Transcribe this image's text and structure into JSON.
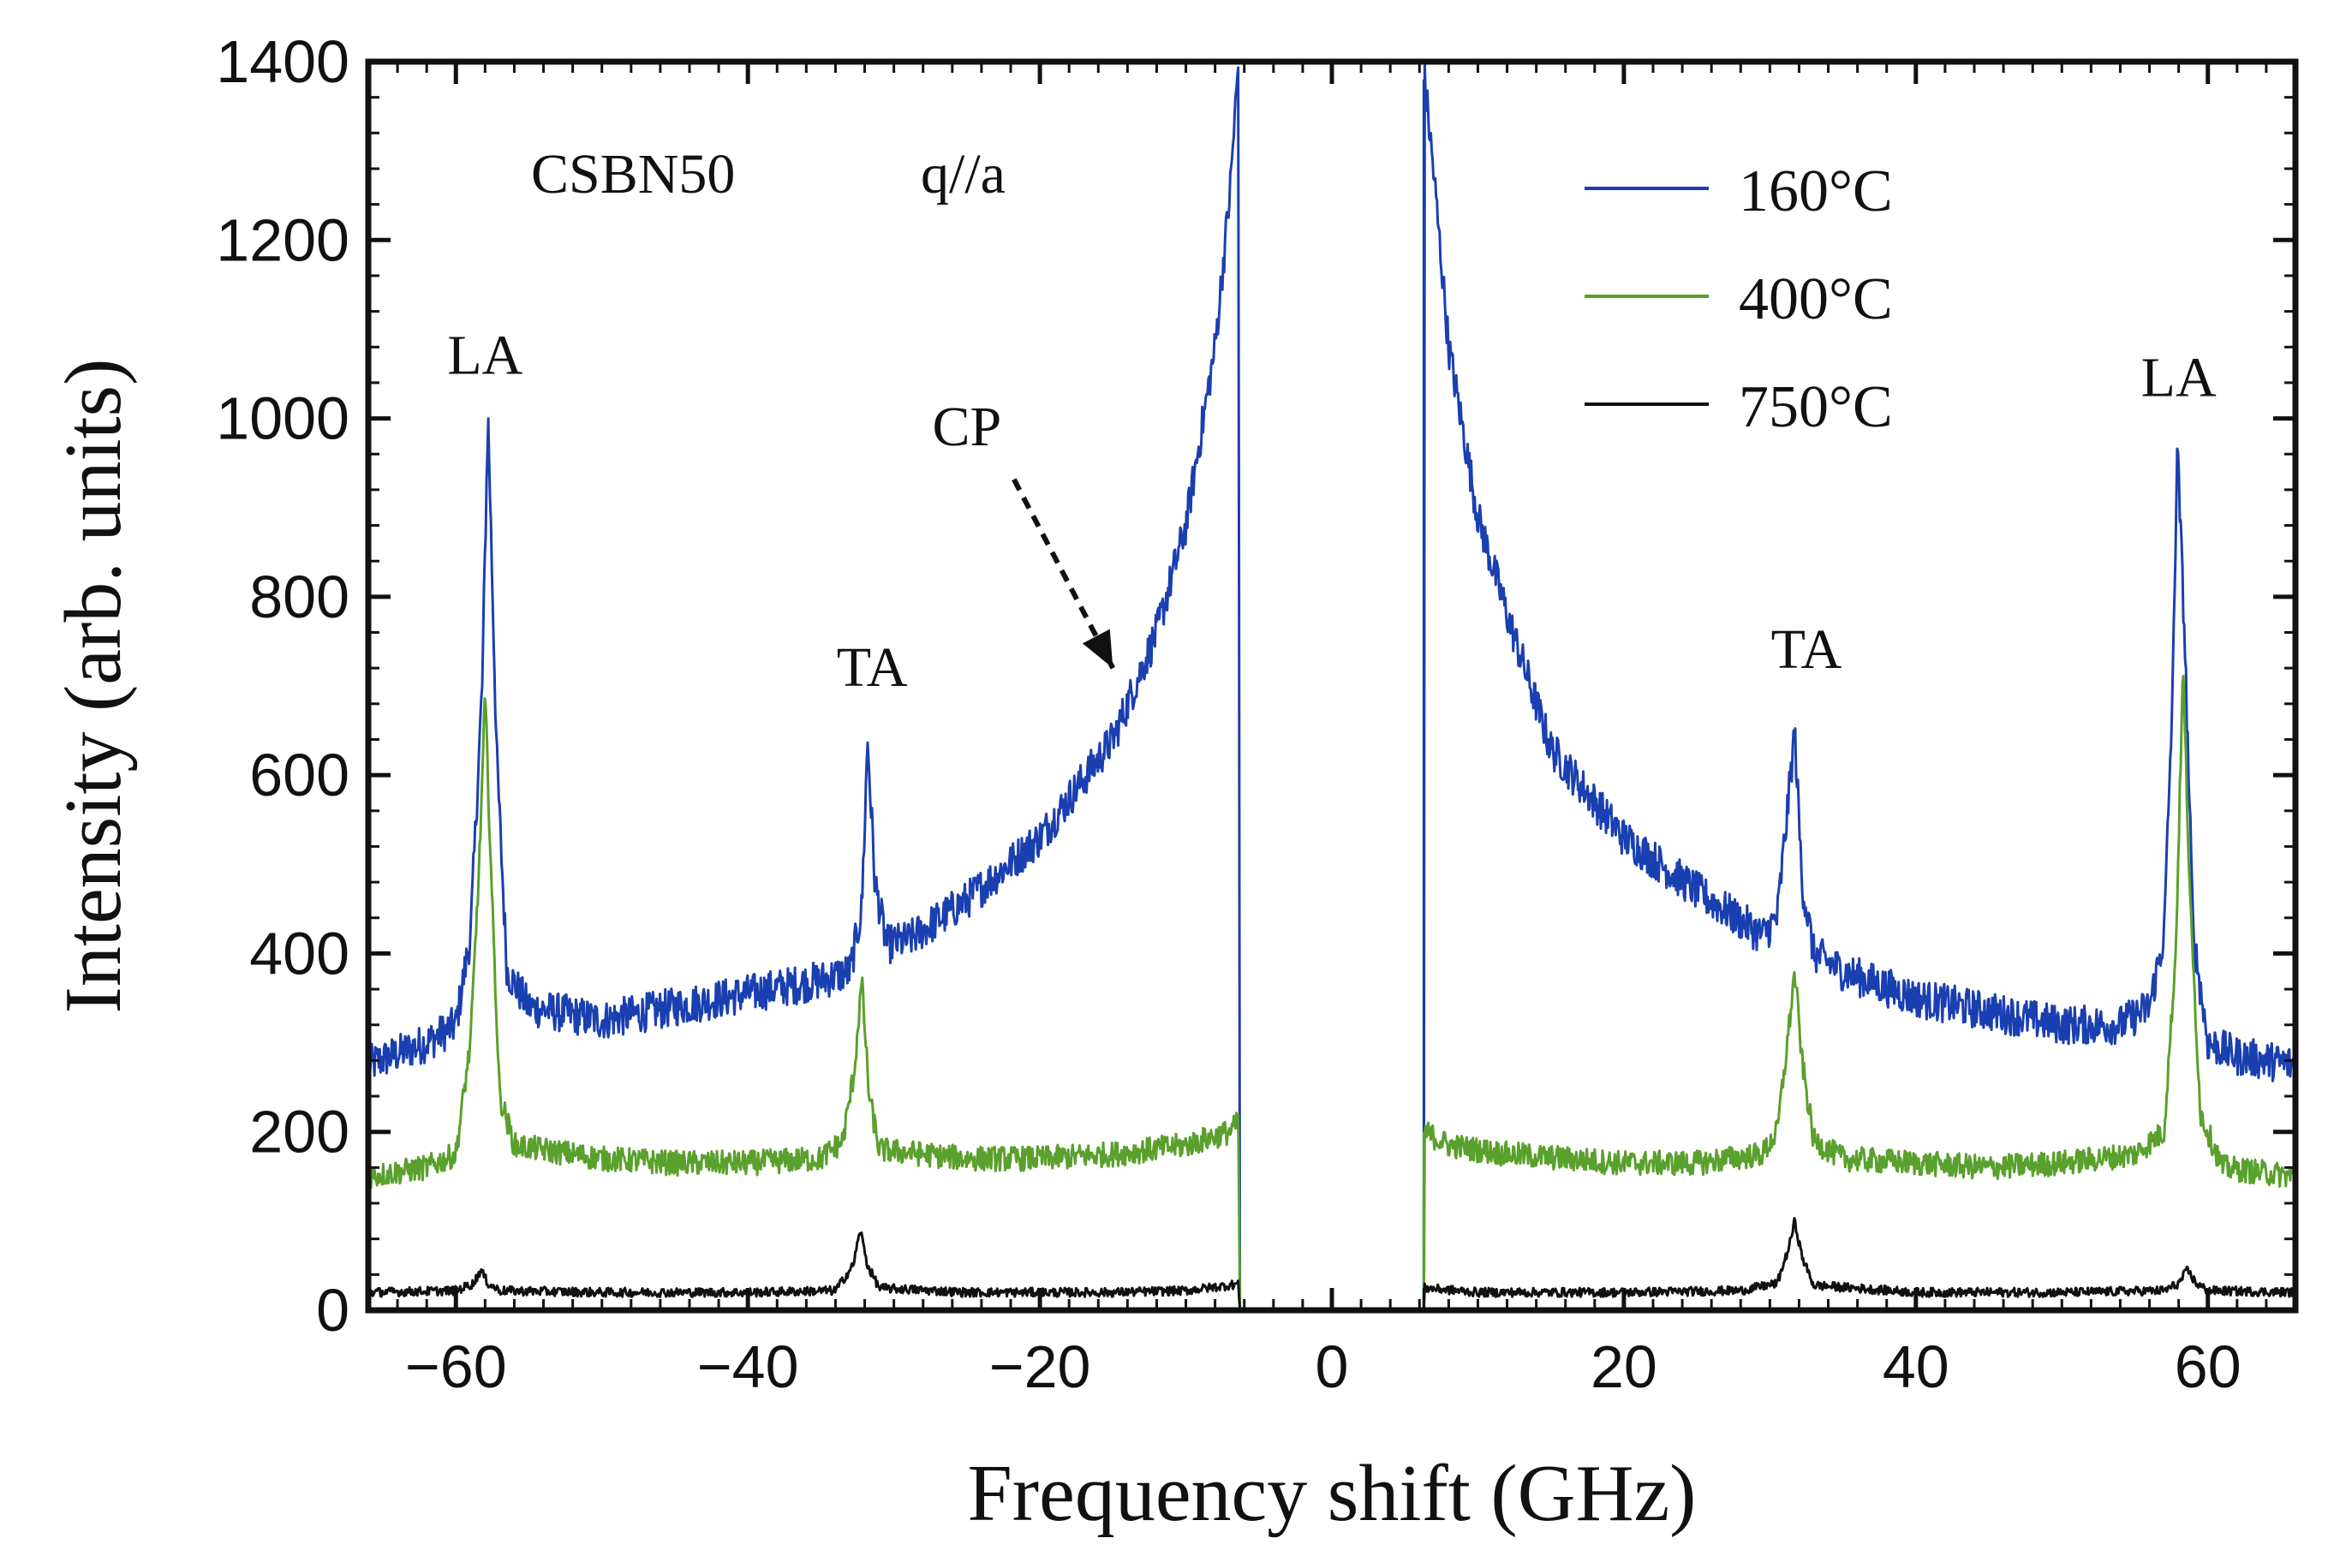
{
  "chart_data": {
    "type": "line",
    "title": "",
    "xlabel": "Frequency shift (GHz)",
    "ylabel": "Intensity (arb. units)",
    "xlim": [
      -66,
      66
    ],
    "ylim": [
      0,
      1400
    ],
    "x_ticks": [
      -60,
      -40,
      -20,
      0,
      20,
      40,
      60
    ],
    "y_ticks": [
      0,
      200,
      400,
      600,
      800,
      1000,
      1200,
      1400
    ],
    "x_tick_labels": [
      "−60",
      "−40",
      "−20",
      "0",
      "20",
      "40",
      "60"
    ],
    "y_tick_labels": [
      "0",
      "200",
      "400",
      "600",
      "800",
      "1000",
      "1200",
      "1400"
    ],
    "grid": false,
    "legend_position": "top-right",
    "sample_name": "CSBN50",
    "scattering_geometry": "q//a",
    "annotations": [
      {
        "text": "LA",
        "x": -58,
        "y": 1050
      },
      {
        "text": "TA",
        "x": -31.5,
        "y": 700
      },
      {
        "text": "CP",
        "x": -25,
        "y": 970,
        "arrow_to": [
          -15,
          720
        ]
      },
      {
        "text": "TA",
        "x": 32.5,
        "y": 720
      },
      {
        "text": "LA",
        "x": 58,
        "y": 1025
      }
    ],
    "gap": [
      -6.3,
      6.3
    ],
    "series": [
      {
        "name": "160°C",
        "color": "#1a3fb0",
        "noise": 22,
        "points": [
          [
            -66,
            275
          ],
          [
            -62,
            300
          ],
          [
            -60,
            320
          ],
          [
            -59,
            420
          ],
          [
            -58.2,
            700
          ],
          [
            -57.8,
            1005
          ],
          [
            -57.2,
            620
          ],
          [
            -56.5,
            380
          ],
          [
            -55,
            340
          ],
          [
            -50,
            325
          ],
          [
            -45,
            340
          ],
          [
            -40,
            355
          ],
          [
            -35,
            370
          ],
          [
            -33,
            380
          ],
          [
            -32.2,
            450
          ],
          [
            -31.8,
            640
          ],
          [
            -31.3,
            480
          ],
          [
            -30.5,
            410
          ],
          [
            -29,
            415
          ],
          [
            -25,
            460
          ],
          [
            -20,
            530
          ],
          [
            -15,
            640
          ],
          [
            -12,
            760
          ],
          [
            -10,
            880
          ],
          [
            -8,
            1080
          ],
          [
            -7,
            1250
          ],
          [
            -6.4,
            1400
          ],
          [
            -6.3,
            0
          ],
          [
            6.3,
            0
          ],
          [
            6.35,
            1380
          ],
          [
            7,
            1270
          ],
          [
            8,
            1080
          ],
          [
            10,
            890
          ],
          [
            12,
            780
          ],
          [
            15,
            630
          ],
          [
            20,
            530
          ],
          [
            25,
            470
          ],
          [
            29.5,
            420
          ],
          [
            30.5,
            440
          ],
          [
            31.2,
            560
          ],
          [
            31.7,
            650
          ],
          [
            32.2,
            480
          ],
          [
            33,
            400
          ],
          [
            35,
            380
          ],
          [
            40,
            350
          ],
          [
            45,
            335
          ],
          [
            50,
            320
          ],
          [
            54,
            320
          ],
          [
            56,
            340
          ],
          [
            57,
            420
          ],
          [
            57.6,
            700
          ],
          [
            57.9,
            970
          ],
          [
            58.4,
            760
          ],
          [
            59,
            420
          ],
          [
            60,
            300
          ],
          [
            62,
            285
          ],
          [
            66,
            275
          ]
        ]
      },
      {
        "name": "400°C",
        "color": "#5aa02c",
        "noise": 14,
        "points": [
          [
            -66,
            150
          ],
          [
            -62,
            160
          ],
          [
            -60,
            175
          ],
          [
            -59,
            300
          ],
          [
            -58.4,
            500
          ],
          [
            -58.0,
            690
          ],
          [
            -57.5,
            450
          ],
          [
            -57,
            240
          ],
          [
            -56,
            185
          ],
          [
            -50,
            170
          ],
          [
            -45,
            165
          ],
          [
            -40,
            165
          ],
          [
            -35,
            170
          ],
          [
            -33.5,
            190
          ],
          [
            -32.7,
            270
          ],
          [
            -32.2,
            370
          ],
          [
            -31.7,
            240
          ],
          [
            -31,
            180
          ],
          [
            -25,
            170
          ],
          [
            -20,
            170
          ],
          [
            -15,
            175
          ],
          [
            -10,
            185
          ],
          [
            -7,
            200
          ],
          [
            -6.4,
            210
          ],
          [
            -6.3,
            0
          ],
          [
            6.3,
            0
          ],
          [
            6.35,
            200
          ],
          [
            8,
            185
          ],
          [
            12,
            175
          ],
          [
            20,
            165
          ],
          [
            25,
            165
          ],
          [
            29.5,
            175
          ],
          [
            30.5,
            200
          ],
          [
            31.2,
            300
          ],
          [
            31.7,
            380
          ],
          [
            32.2,
            280
          ],
          [
            33,
            190
          ],
          [
            35,
            170
          ],
          [
            40,
            165
          ],
          [
            45,
            160
          ],
          [
            50,
            165
          ],
          [
            55,
            175
          ],
          [
            57,
            200
          ],
          [
            57.8,
            400
          ],
          [
            58.3,
            720
          ],
          [
            58.8,
            450
          ],
          [
            59.5,
            220
          ],
          [
            61,
            160
          ],
          [
            66,
            150
          ]
        ]
      },
      {
        "name": "750°C",
        "color": "#111111",
        "noise": 5,
        "points": [
          [
            -66,
            20
          ],
          [
            -60,
            22
          ],
          [
            -58.8,
            30
          ],
          [
            -58.3,
            45
          ],
          [
            -57.8,
            30
          ],
          [
            -57,
            22
          ],
          [
            -50,
            20
          ],
          [
            -40,
            20
          ],
          [
            -34,
            22
          ],
          [
            -32.8,
            50
          ],
          [
            -32.3,
            90
          ],
          [
            -31.8,
            50
          ],
          [
            -31,
            25
          ],
          [
            -25,
            20
          ],
          [
            -15,
            20
          ],
          [
            -10,
            22
          ],
          [
            -7,
            28
          ],
          [
            -6.4,
            30
          ],
          [
            -6.3,
            0
          ],
          [
            6.3,
            0
          ],
          [
            6.35,
            25
          ],
          [
            10,
            20
          ],
          [
            20,
            20
          ],
          [
            28,
            22
          ],
          [
            30.5,
            30
          ],
          [
            31.3,
            70
          ],
          [
            31.7,
            100
          ],
          [
            32.2,
            60
          ],
          [
            33,
            28
          ],
          [
            40,
            20
          ],
          [
            50,
            20
          ],
          [
            57,
            22
          ],
          [
            58,
            30
          ],
          [
            58.6,
            45
          ],
          [
            59.2,
            30
          ],
          [
            60,
            22
          ],
          [
            66,
            20
          ]
        ]
      }
    ]
  }
}
